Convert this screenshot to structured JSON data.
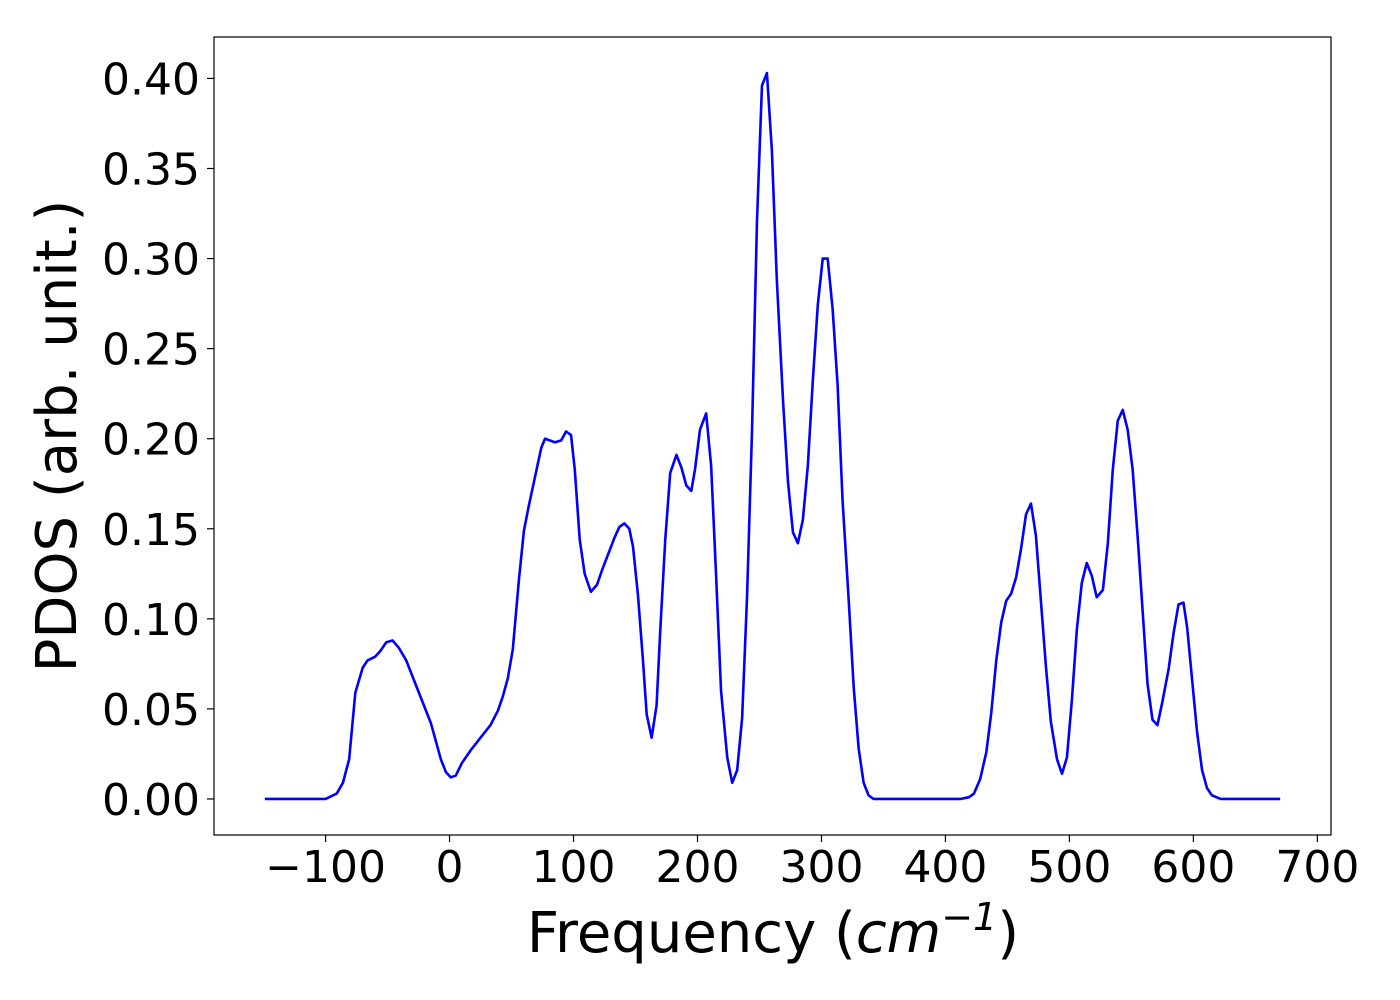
{
  "chart_data": {
    "type": "line",
    "ylabel": "PDOS (arb. unit.)",
    "xlabel": {
      "prefix": "Frequency (",
      "unit": "cm",
      "exponent": "−1",
      "suffix": ")"
    },
    "xlim": [
      -190,
      711
    ],
    "ylim": [
      -0.02,
      0.423
    ],
    "xticks": [
      {
        "value": -100,
        "label": "−100"
      },
      0,
      100,
      200,
      300,
      400,
      500,
      600,
      700
    ],
    "yticks": [
      {
        "value": 0,
        "label": "0.00"
      },
      {
        "value": 0.05,
        "label": "0.05"
      },
      {
        "value": 0.1,
        "label": "0.10"
      },
      {
        "value": 0.15,
        "label": "0.15"
      },
      {
        "value": 0.2,
        "label": "0.20"
      },
      {
        "value": 0.25,
        "label": "0.25"
      },
      {
        "value": 0.3,
        "label": "0.30"
      },
      {
        "value": 0.35,
        "label": "0.35"
      },
      {
        "value": 0.4,
        "label": "0.40"
      }
    ],
    "grid": false,
    "color": "#0000ff",
    "x": [
      -149,
      -100,
      -91,
      -86,
      -81,
      -76,
      -70,
      -66,
      -60,
      -56,
      -51,
      -46,
      -41,
      -35,
      -23,
      -15,
      -7,
      -3,
      1,
      5,
      10,
      17,
      25,
      33,
      39,
      43,
      47,
      51,
      56,
      60,
      64,
      69,
      74,
      77,
      81,
      85,
      90,
      94,
      98,
      101,
      105,
      109,
      114,
      119,
      123,
      128,
      133,
      137,
      141,
      145,
      148,
      152,
      156,
      159,
      163,
      167,
      170,
      174,
      178,
      183,
      187,
      191,
      195,
      198,
      202,
      207,
      211,
      215,
      219,
      224,
      228,
      232,
      236,
      240,
      244,
      248,
      252,
      256,
      260,
      264,
      269,
      273,
      277,
      281,
      285,
      289,
      293,
      297,
      301,
      305,
      309,
      313,
      317,
      322,
      326,
      330,
      334,
      338,
      342,
      412,
      419,
      423,
      428,
      433,
      437,
      441,
      445,
      449,
      453,
      457,
      461,
      465,
      469,
      473,
      477,
      481,
      485,
      490,
      494,
      498,
      502,
      506,
      510,
      514,
      518,
      522,
      527,
      531,
      535,
      539,
      543,
      547,
      551,
      555,
      559,
      563,
      567,
      571,
      575,
      580,
      584,
      588,
      592,
      595,
      599,
      603,
      607,
      611,
      615,
      622,
      670
    ],
    "values": [
      0,
      0,
      0.003,
      0.009,
      0.022,
      0.059,
      0.073,
      0.077,
      0.079,
      0.082,
      0.087,
      0.088,
      0.084,
      0.077,
      0.056,
      0.042,
      0.022,
      0.015,
      0.012,
      0.013,
      0.02,
      0.027,
      0.034,
      0.041,
      0.049,
      0.057,
      0.067,
      0.083,
      0.122,
      0.149,
      0.163,
      0.179,
      0.195,
      0.2,
      0.199,
      0.198,
      0.199,
      0.204,
      0.202,
      0.183,
      0.144,
      0.125,
      0.115,
      0.119,
      0.127,
      0.136,
      0.145,
      0.151,
      0.153,
      0.15,
      0.14,
      0.113,
      0.077,
      0.047,
      0.034,
      0.052,
      0.094,
      0.144,
      0.181,
      0.191,
      0.184,
      0.174,
      0.171,
      0.183,
      0.205,
      0.214,
      0.185,
      0.124,
      0.06,
      0.023,
      0.009,
      0.016,
      0.045,
      0.113,
      0.205,
      0.321,
      0.396,
      0.403,
      0.36,
      0.288,
      0.221,
      0.176,
      0.148,
      0.142,
      0.155,
      0.185,
      0.232,
      0.274,
      0.3,
      0.3,
      0.272,
      0.23,
      0.166,
      0.11,
      0.062,
      0.028,
      0.009,
      0.002,
      0,
      0,
      0.001,
      0.003,
      0.011,
      0.026,
      0.048,
      0.077,
      0.098,
      0.11,
      0.114,
      0.123,
      0.139,
      0.158,
      0.164,
      0.146,
      0.11,
      0.074,
      0.043,
      0.022,
      0.014,
      0.023,
      0.055,
      0.094,
      0.12,
      0.131,
      0.124,
      0.112,
      0.116,
      0.142,
      0.183,
      0.21,
      0.216,
      0.205,
      0.183,
      0.146,
      0.105,
      0.064,
      0.044,
      0.041,
      0.054,
      0.072,
      0.092,
      0.108,
      0.109,
      0.095,
      0.066,
      0.037,
      0.016,
      0.006,
      0.002,
      0,
      0
    ]
  }
}
